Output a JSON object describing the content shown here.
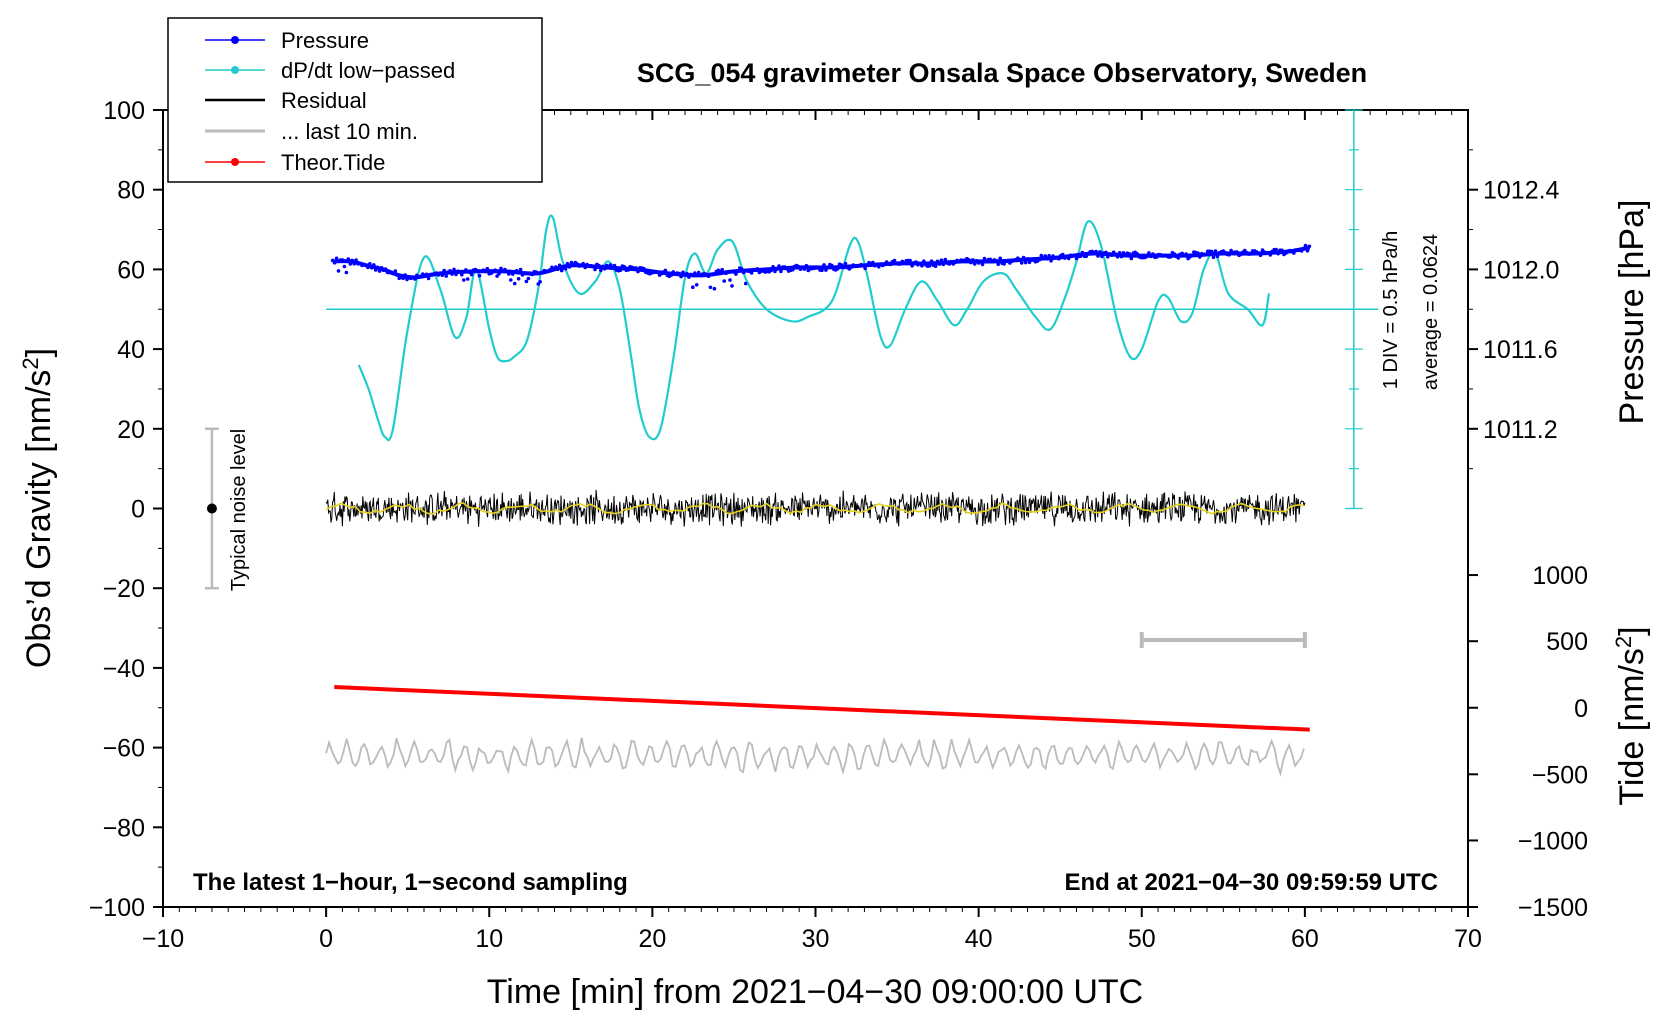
{
  "chart_data": {
    "type": "line",
    "title": "SCG_054 gravimeter Onsala Space Observatory, Sweden",
    "xlabel": "Time [min] from 2021−04−30 09:00:00 UTC",
    "ylabel_left": "Obs’d Gravity [nm/s²]",
    "ylabel_left_main": "Obs’d Gravity [nm/s",
    "ylabel_left_sup": "2",
    "ylabel_left_end": "]",
    "ylabel_right_pressure": "Pressure [hPa]",
    "ylabel_right_tide": "Tide [nm/s²]",
    "ylabel_right_tide_main": "Tide [nm/s",
    "ylabel_right_tide_sup": "2",
    "ylabel_right_tide_end": "]",
    "xlim": [
      -10,
      70
    ],
    "ylim": [
      -100,
      100
    ],
    "x_ticks": [
      -10,
      0,
      10,
      20,
      30,
      40,
      50,
      60,
      70
    ],
    "x_tick_labels": [
      "−10",
      "0",
      "10",
      "20",
      "30",
      "40",
      "50",
      "60",
      "70"
    ],
    "y_ticks": [
      -100,
      -80,
      -60,
      -40,
      -20,
      0,
      20,
      40,
      60,
      80,
      100
    ],
    "y_tick_labels": [
      "−100",
      "−80",
      "−60",
      "−40",
      "−20",
      "0",
      "20",
      "40",
      "60",
      "80",
      "100"
    ],
    "pressure_axis": {
      "ticks": [
        1011.2,
        1011.6,
        1012.0,
        1012.4
      ],
      "tick_labels": [
        "1011.2",
        "1011.6",
        "1012.0",
        "1012.4"
      ],
      "gravity_at_ticks": [
        20,
        40,
        60,
        80
      ]
    },
    "tide_axis": {
      "ticks": [
        1000,
        500,
        0,
        -500,
        -1000,
        -1500
      ],
      "tick_labels": [
        "1000",
        "500",
        "0",
        "−500",
        "−1000",
        "−1500"
      ],
      "gravity_at_ticks": [
        -16.7,
        -33.3,
        -50,
        -66.7,
        -83.3,
        -100
      ]
    },
    "legend": [
      {
        "label": "Pressure",
        "color": "#0000ff",
        "marker": true
      },
      {
        "label": "dP/dt low−passed",
        "color": "#22cccc",
        "marker": true
      },
      {
        "label": "Residual",
        "color": "#000000",
        "marker": false
      },
      {
        "label": "... last 10 min.",
        "color": "#bbbbbb",
        "marker": false
      },
      {
        "label": "Theor.Tide",
        "color": "#ff0000",
        "marker": true
      }
    ],
    "series": [
      {
        "name": "Pressure",
        "color": "#0000ff",
        "x": [
          0.5,
          1.5,
          2.5,
          3.5,
          4.5,
          5.5,
          7,
          9,
          11,
          13,
          15,
          17,
          19,
          21,
          23,
          25,
          27,
          29,
          31,
          33,
          35,
          37,
          39,
          41,
          43,
          45,
          47,
          49,
          51,
          53,
          55,
          57,
          59,
          60.3
        ],
        "values": [
          62,
          62,
          61,
          60,
          58.5,
          58,
          59,
          59.5,
          59.5,
          59,
          61,
          60.5,
          60,
          59,
          58.5,
          59.5,
          60,
          60.5,
          60.5,
          61,
          61.5,
          61.5,
          62,
          62,
          62.5,
          63,
          64,
          63.5,
          63.5,
          63.5,
          64,
          64,
          64.5,
          65.5
        ]
      },
      {
        "name": "dP/dt low-passed",
        "color": "#22cccc",
        "x": [
          2,
          2.6,
          3.2,
          3.6,
          4.1,
          5,
          6,
          7,
          7.9,
          8.6,
          9.2,
          10,
          10.5,
          11,
          11.5,
          12.3,
          13,
          13.5,
          13.9,
          14.5,
          15.5,
          16.5,
          17.3,
          18,
          18.7,
          19.2,
          19.8,
          20.5,
          21.3,
          22,
          22.6,
          23.3,
          24,
          24.9,
          25.8,
          27,
          28.5,
          29.5,
          31,
          32.1,
          32.6,
          33.2,
          34,
          34.6,
          35.5,
          36.5,
          37.5,
          38.5,
          39.3,
          40.3,
          41.5,
          42.3,
          43.5,
          44.4,
          45.3,
          46,
          46.7,
          47.5,
          48.5,
          49.3,
          50,
          51,
          51.6,
          52.4,
          53.1,
          53.8,
          54.5,
          55.3,
          56.5,
          57.4,
          57.8
        ],
        "values": [
          36,
          30,
          22,
          18,
          20,
          45,
          63,
          55,
          43,
          48,
          60,
          45,
          38,
          37,
          38,
          42,
          55,
          70,
          73,
          62,
          54,
          57,
          62,
          55,
          38,
          25,
          18,
          20,
          38,
          58,
          64,
          59,
          65,
          67,
          57,
          50,
          47,
          48,
          52,
          66,
          67,
          58,
          43,
          41,
          50,
          57,
          52,
          46,
          50,
          57,
          59,
          55,
          48,
          45,
          53,
          62,
          72,
          66,
          47,
          38,
          40,
          52,
          53,
          47,
          49,
          60,
          64,
          54,
          50,
          46,
          54
        ]
      },
      {
        "name": "Theor.Tide",
        "color": "#ff0000",
        "x": [
          0.5,
          60.3
        ],
        "values": [
          -44.8,
          -55.5
        ]
      }
    ],
    "reference_lines": [
      {
        "name": "dP/dt average",
        "y": 50,
        "x_range": [
          0,
          64.5
        ],
        "color": "#22cccc"
      }
    ],
    "noise_bar": {
      "x": -7,
      "y": 0,
      "range": [
        -20,
        20
      ],
      "label": "Typical noise level"
    },
    "last10_bar": {
      "x_range": [
        50,
        60
      ],
      "y": -33,
      "color": "#bbbbbb"
    },
    "residual": {
      "x_range": [
        0,
        60
      ],
      "center": 0,
      "amplitude": 4
    },
    "last10_trace": {
      "x_range": [
        0,
        60
      ],
      "center": -62,
      "amplitude": 3.5
    },
    "div_scale": {
      "label": "1 DIV = 0.5 hPa/h",
      "average_label": "average = 0.0624"
    },
    "annotations": {
      "bottom_left": "The latest 1−hour, 1−second sampling",
      "bottom_right": "End at 2021−04−30 09:59:59 UTC"
    }
  }
}
